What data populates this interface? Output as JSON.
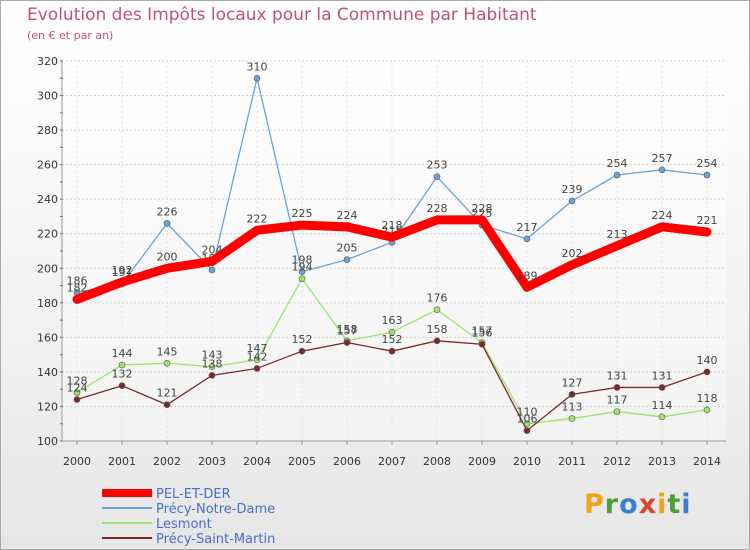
{
  "chart_data": {
    "type": "line",
    "title": "Evolution des Impôts locaux pour la Commune par Habitant",
    "subtitle": "(en € et par an)",
    "xlabel": "",
    "ylabel": "",
    "categories": [
      "2000",
      "2001",
      "2002",
      "2003",
      "2004",
      "2005",
      "2006",
      "2007",
      "2008",
      "2009",
      "2010",
      "2011",
      "2012",
      "2013",
      "2014"
    ],
    "ylim": [
      100,
      320
    ],
    "yticks": [
      100,
      120,
      140,
      160,
      180,
      200,
      220,
      240,
      260,
      280,
      300,
      320
    ],
    "grid": "horizontal",
    "legend_position": "bottom-left",
    "series": [
      {
        "name": "PEL-ET-DER",
        "color": "#ff0000",
        "values": [
          182,
          192,
          200,
          204,
          222,
          225,
          224,
          218,
          228,
          228,
          189,
          202,
          213,
          224,
          221
        ]
      },
      {
        "name": "Précy-Notre-Dame",
        "color": "#6aa3d8",
        "values": [
          186,
          191,
          226,
          199,
          310,
          198,
          205,
          215,
          253,
          225,
          217,
          239,
          254,
          257,
          254
        ]
      },
      {
        "name": "Lesmont",
        "color": "#9ee36a",
        "values": [
          128,
          144,
          145,
          143,
          147,
          194,
          158,
          163,
          176,
          157,
          110,
          113,
          117,
          114,
          118
        ]
      },
      {
        "name": "Précy-Saint-Martin",
        "color": "#7a2a2a",
        "values": [
          124,
          132,
          121,
          138,
          142,
          152,
          157,
          152,
          158,
          156,
          106,
          127,
          131,
          131,
          140
        ]
      }
    ]
  },
  "branding": {
    "logo_text": "Proxiti"
  }
}
